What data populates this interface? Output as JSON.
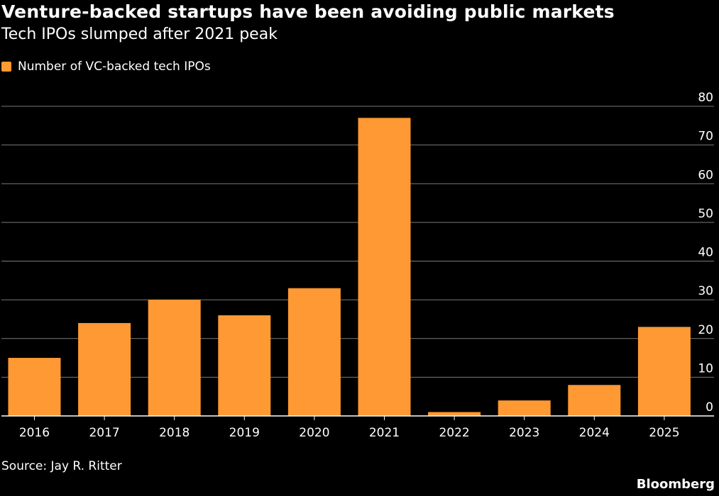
{
  "header": {
    "title": "Venture-backed startups have been avoiding public markets",
    "subtitle": "Tech IPOs slumped after 2021 peak"
  },
  "legend": {
    "label": "Number of VC-backed tech IPOs"
  },
  "footer": {
    "source": "Source: Jay R. Ritter",
    "brand": "Bloomberg"
  },
  "colors": {
    "background": "#000000",
    "bar": "#FF9933",
    "grid": "#7a7a7a",
    "axis": "#ffffff",
    "text": "#ffffff"
  },
  "chart_data": {
    "type": "bar",
    "title": "Venture-backed startups have been avoiding public markets",
    "subtitle": "Tech IPOs slumped after 2021 peak",
    "xlabel": "",
    "ylabel": "",
    "categories": [
      "2016",
      "2017",
      "2018",
      "2019",
      "2020",
      "2021",
      "2022",
      "2023",
      "2024",
      "2025"
    ],
    "series": [
      {
        "name": "Number of VC-backed tech IPOs",
        "values": [
          15,
          24,
          30,
          26,
          33,
          77,
          1,
          4,
          8,
          23
        ]
      }
    ],
    "ylim": [
      0,
      80
    ],
    "yticks": [
      0,
      10,
      20,
      30,
      40,
      50,
      60,
      70,
      80
    ],
    "y_axis_side": "right",
    "grid": true,
    "legend_position": "top-left"
  }
}
